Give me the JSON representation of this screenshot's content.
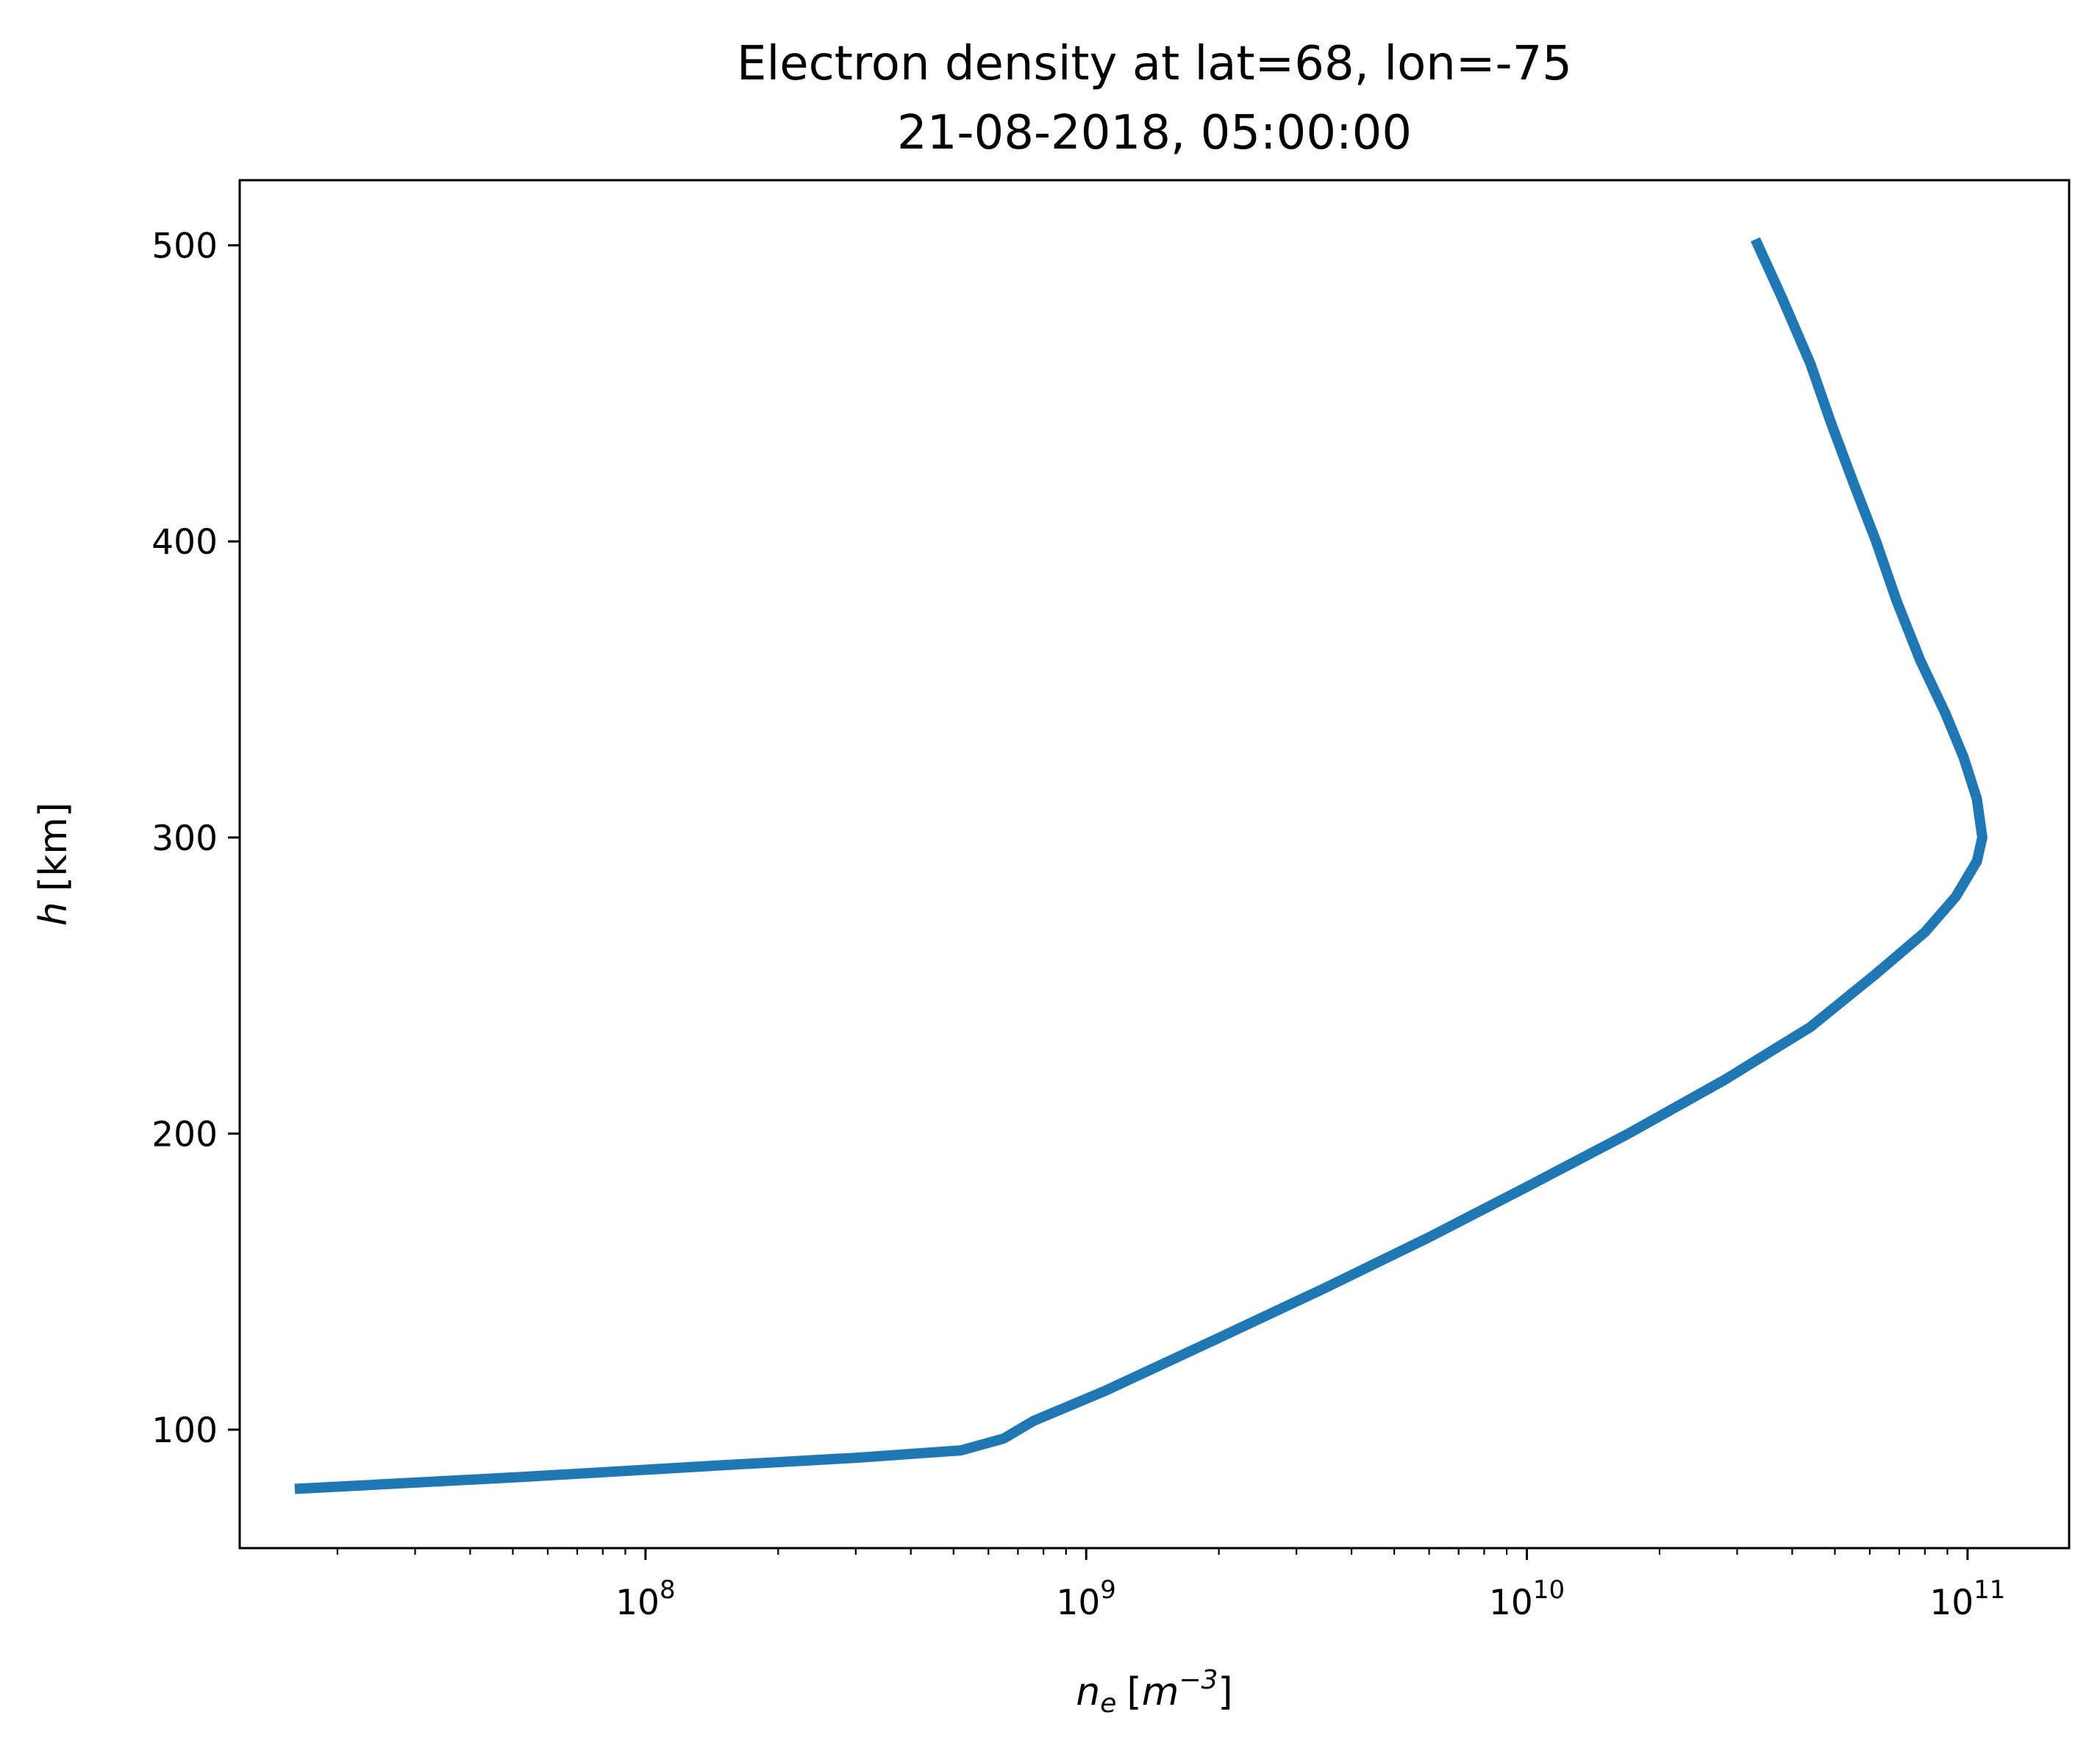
{
  "chart_data": {
    "type": "line",
    "title_line1": "Electron density at lat=68, lon=-75",
    "title_line2": "21-08-2018, 05:00:00",
    "xlabel": {
      "base": "n",
      "sub": "e",
      "bracket_open": "[",
      "unit_base": "m",
      "unit_sup": "−3",
      "bracket_close": "]"
    },
    "ylabel": {
      "var": "h",
      "unit": "[km]"
    },
    "x_scale": "log",
    "x_range": [
      12000000.0,
      170000000000.0
    ],
    "y_range": [
      60,
      522
    ],
    "x_ticks": [
      {
        "value": 100000000.0,
        "base": "10",
        "exp": "8"
      },
      {
        "value": 1000000000.0,
        "base": "10",
        "exp": "9"
      },
      {
        "value": 10000000000.0,
        "base": "10",
        "exp": "10"
      },
      {
        "value": 100000000000.0,
        "base": "10",
        "exp": "11"
      }
    ],
    "y_ticks": [
      {
        "value": 100,
        "label": "100"
      },
      {
        "value": 200,
        "label": "200"
      },
      {
        "value": 300,
        "label": "300"
      },
      {
        "value": 400,
        "label": "400"
      },
      {
        "value": 500,
        "label": "500"
      }
    ],
    "grid": false,
    "legend": "none",
    "series": [
      {
        "color": "#1f77b4",
        "points": [
          [
            16000000.0,
            80
          ],
          [
            52000000.0,
            84
          ],
          [
            150000000.0,
            88
          ],
          [
            300000000.0,
            90.5
          ],
          [
            520000000.0,
            93
          ],
          [
            650000000.0,
            97
          ],
          [
            760000000.0,
            103
          ],
          [
            1100000000.0,
            113
          ],
          [
            2000000000.0,
            131
          ],
          [
            3500000000.0,
            148
          ],
          [
            6000000000.0,
            165
          ],
          [
            10000000000.0,
            182
          ],
          [
            17000000000.0,
            200
          ],
          [
            28000000000.0,
            218
          ],
          [
            44000000000.0,
            236
          ],
          [
            62000000000.0,
            254
          ],
          [
            80000000000.0,
            268
          ],
          [
            94000000000.0,
            280
          ],
          [
            105000000000.0,
            292
          ],
          [
            108000000000.0,
            300
          ],
          [
            105000000000.0,
            313
          ],
          [
            98000000000.0,
            327
          ],
          [
            89000000000.0,
            342
          ],
          [
            78000000000.0,
            360
          ],
          [
            69000000000.0,
            380
          ],
          [
            62000000000.0,
            400
          ],
          [
            55000000000.0,
            420
          ],
          [
            49000000000.0,
            440
          ],
          [
            44000000000.0,
            460
          ],
          [
            38000000000.0,
            482
          ],
          [
            33000000000.0,
            502
          ]
        ]
      }
    ]
  }
}
